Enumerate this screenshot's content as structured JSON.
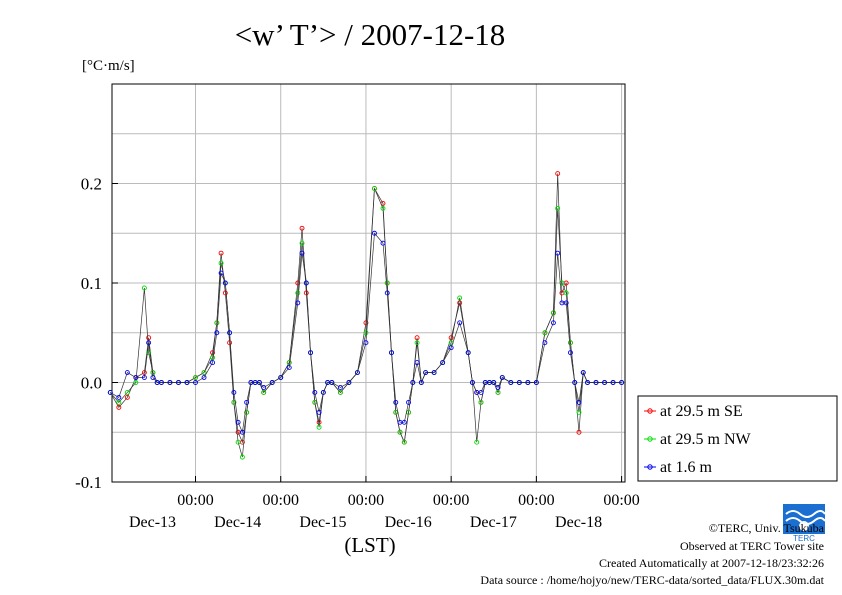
{
  "chart_data": {
    "type": "line",
    "title": "<w’ T’> / 2007-12-18",
    "ylabel": "[°C·m/s]",
    "xlabel": "(LST)",
    "ylim": [
      -0.1,
      0.3
    ],
    "yticks": [
      -0.1,
      0.0,
      0.1,
      0.2
    ],
    "ytick_labels": [
      "-0.1",
      "0.0",
      "0.1",
      "0.2"
    ],
    "xlim": [
      0,
      6
    ],
    "x_unit": "days since 2007-12-12 12:00 LST",
    "xticks": [
      {
        "x": 1,
        "time": "00:00",
        "date": "Dec-13"
      },
      {
        "x": 2,
        "time": "00:00",
        "date": "Dec-14"
      },
      {
        "x": 3,
        "time": "00:00",
        "date": "Dec-15"
      },
      {
        "x": 4,
        "time": "00:00",
        "date": "Dec-16"
      },
      {
        "x": 5,
        "time": "00:00",
        "date": "Dec-17"
      },
      {
        "x": 6,
        "time": "00:00",
        "date": "Dec-18"
      }
    ],
    "grid": true,
    "legend_position": "right",
    "series": [
      {
        "name": "at 29.5 m SE",
        "color": "#ff0000",
        "x": [
          0.0,
          0.1,
          0.2,
          0.3,
          0.4,
          0.45,
          0.5,
          0.55,
          0.6,
          0.7,
          0.8,
          0.9,
          1.0,
          1.1,
          1.2,
          1.25,
          1.3,
          1.35,
          1.4,
          1.45,
          1.5,
          1.55,
          1.6,
          1.65,
          1.7,
          1.75,
          1.8,
          1.9,
          2.0,
          2.1,
          2.2,
          2.25,
          2.3,
          2.35,
          2.4,
          2.45,
          2.5,
          2.55,
          2.6,
          2.7,
          2.8,
          2.9,
          3.0,
          3.1,
          3.2,
          3.25,
          3.3,
          3.35,
          3.4,
          3.45,
          3.5,
          3.55,
          3.6,
          3.65,
          3.7,
          3.8,
          3.9,
          4.0,
          4.1,
          4.2,
          4.25,
          4.3,
          4.35,
          4.4,
          4.45,
          4.5,
          4.55,
          4.6,
          4.7,
          4.8,
          4.9,
          5.0,
          5.1,
          5.2,
          5.25,
          5.3,
          5.35,
          5.4,
          5.45,
          5.5,
          5.55,
          5.6,
          5.7,
          5.8,
          5.9,
          6.0
        ],
        "y": [
          -0.01,
          -0.025,
          -0.015,
          0.005,
          0.01,
          0.045,
          0.01,
          0.0,
          0.0,
          0.0,
          0.0,
          0.0,
          0.005,
          0.01,
          0.03,
          0.06,
          0.13,
          0.09,
          0.04,
          -0.02,
          -0.05,
          -0.06,
          -0.03,
          0.0,
          0.0,
          0.0,
          -0.01,
          0.0,
          0.005,
          0.02,
          0.1,
          0.155,
          0.09,
          0.03,
          -0.02,
          -0.04,
          -0.01,
          0.0,
          0.0,
          -0.01,
          0.0,
          0.01,
          0.06,
          0.195,
          0.18,
          0.1,
          0.03,
          -0.03,
          -0.05,
          -0.06,
          -0.03,
          0.0,
          0.045,
          0.0,
          0.01,
          0.01,
          0.02,
          0.045,
          0.08,
          0.03,
          0.0,
          -0.01,
          -0.02,
          0.0,
          0.0,
          0.0,
          -0.01,
          0.005,
          0.0,
          0.0,
          0.0,
          0.0,
          0.05,
          0.07,
          0.21,
          0.09,
          0.1,
          0.04,
          0.0,
          -0.05,
          0.01,
          0.0,
          0.0,
          0.0,
          0.0,
          0.0
        ]
      },
      {
        "name": "at 29.5 m NW",
        "color": "#00dd00",
        "x": [
          0.0,
          0.1,
          0.2,
          0.3,
          0.4,
          0.45,
          0.5,
          0.55,
          0.6,
          0.7,
          0.8,
          0.9,
          1.0,
          1.1,
          1.2,
          1.25,
          1.3,
          1.35,
          1.4,
          1.45,
          1.5,
          1.55,
          1.6,
          1.65,
          1.7,
          1.75,
          1.8,
          1.9,
          2.0,
          2.1,
          2.2,
          2.25,
          2.3,
          2.35,
          2.4,
          2.45,
          2.5,
          2.55,
          2.6,
          2.7,
          2.8,
          2.9,
          3.0,
          3.1,
          3.2,
          3.25,
          3.3,
          3.35,
          3.4,
          3.45,
          3.5,
          3.55,
          3.6,
          3.65,
          3.7,
          3.8,
          3.9,
          4.0,
          4.1,
          4.2,
          4.25,
          4.3,
          4.35,
          4.4,
          4.45,
          4.5,
          4.55,
          4.6,
          4.7,
          4.8,
          4.9,
          5.0,
          5.1,
          5.2,
          5.25,
          5.3,
          5.35,
          5.4,
          5.45,
          5.5,
          5.55,
          5.6,
          5.7,
          5.8,
          5.9,
          6.0
        ],
        "y": [
          -0.01,
          -0.02,
          -0.01,
          0.0,
          0.095,
          0.03,
          0.01,
          0.0,
          0.0,
          0.0,
          0.0,
          0.0,
          0.005,
          0.01,
          0.025,
          0.06,
          0.12,
          0.1,
          0.05,
          -0.02,
          -0.06,
          -0.075,
          -0.03,
          0.0,
          0.0,
          0.0,
          -0.01,
          0.0,
          0.005,
          0.02,
          0.09,
          0.14,
          0.1,
          0.03,
          -0.02,
          -0.045,
          -0.01,
          0.0,
          0.0,
          -0.01,
          0.0,
          0.01,
          0.05,
          0.195,
          0.175,
          0.1,
          0.03,
          -0.03,
          -0.05,
          -0.06,
          -0.03,
          0.0,
          0.04,
          0.0,
          0.01,
          0.01,
          0.02,
          0.04,
          0.085,
          0.03,
          0.0,
          -0.06,
          -0.02,
          0.0,
          0.0,
          0.0,
          -0.01,
          0.005,
          0.0,
          0.0,
          0.0,
          0.0,
          0.05,
          0.07,
          0.175,
          0.1,
          0.09,
          0.04,
          0.0,
          -0.03,
          0.01,
          0.0,
          0.0,
          0.0,
          0.0,
          0.0
        ]
      },
      {
        "name": "at 1.6 m",
        "color": "#0000ff",
        "x": [
          0.0,
          0.1,
          0.2,
          0.3,
          0.4,
          0.45,
          0.5,
          0.55,
          0.6,
          0.7,
          0.8,
          0.9,
          1.0,
          1.1,
          1.2,
          1.25,
          1.3,
          1.35,
          1.4,
          1.45,
          1.5,
          1.55,
          1.6,
          1.65,
          1.7,
          1.75,
          1.8,
          1.9,
          2.0,
          2.1,
          2.2,
          2.25,
          2.3,
          2.35,
          2.4,
          2.45,
          2.5,
          2.55,
          2.6,
          2.7,
          2.8,
          2.9,
          3.0,
          3.1,
          3.2,
          3.25,
          3.3,
          3.35,
          3.4,
          3.45,
          3.5,
          3.55,
          3.6,
          3.65,
          3.7,
          3.8,
          3.9,
          4.0,
          4.1,
          4.2,
          4.25,
          4.3,
          4.35,
          4.4,
          4.45,
          4.5,
          4.55,
          4.6,
          4.7,
          4.8,
          4.9,
          5.0,
          5.1,
          5.2,
          5.25,
          5.3,
          5.35,
          5.4,
          5.45,
          5.5,
          5.55,
          5.6,
          5.7,
          5.8,
          5.9,
          6.0
        ],
        "y": [
          -0.01,
          -0.015,
          0.01,
          0.005,
          0.005,
          0.04,
          0.005,
          0.0,
          0.0,
          0.0,
          0.0,
          0.0,
          0.0,
          0.005,
          0.02,
          0.05,
          0.11,
          0.1,
          0.05,
          -0.01,
          -0.04,
          -0.05,
          -0.02,
          0.0,
          0.0,
          0.0,
          -0.005,
          0.0,
          0.005,
          0.015,
          0.08,
          0.13,
          0.1,
          0.03,
          -0.01,
          -0.03,
          -0.01,
          0.0,
          0.0,
          -0.005,
          0.0,
          0.01,
          0.04,
          0.15,
          0.14,
          0.09,
          0.03,
          -0.02,
          -0.04,
          -0.04,
          -0.02,
          0.0,
          0.02,
          0.0,
          0.01,
          0.01,
          0.02,
          0.035,
          0.06,
          0.03,
          0.0,
          -0.01,
          -0.01,
          0.0,
          0.0,
          0.0,
          -0.005,
          0.005,
          0.0,
          0.0,
          0.0,
          0.0,
          0.04,
          0.06,
          0.13,
          0.08,
          0.08,
          0.03,
          0.0,
          -0.02,
          0.01,
          0.0,
          0.0,
          0.0,
          0.0,
          0.0
        ]
      }
    ]
  },
  "credits": {
    "copyright": "©TERC, Univ. Tsukuba",
    "observed": "Observed at TERC Tower site",
    "created": "Created Automatically at 2007-12-18/23:32:26",
    "source": "Data source : /home/hojyo/new/TERC-data/sorted_data/FLUX.30m.dat",
    "logo_text": "TERC"
  }
}
